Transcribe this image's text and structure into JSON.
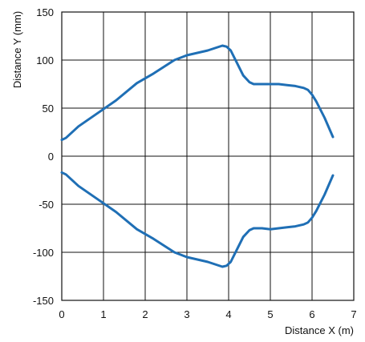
{
  "chart_data": {
    "type": "line",
    "title": "",
    "xlabel": "Distance X (m)",
    "ylabel": "Distance Y (mm)",
    "xlim": [
      0,
      7
    ],
    "ylim": [
      -150,
      150
    ],
    "xticks": [
      "0",
      "1",
      "2",
      "3",
      "4",
      "5",
      "6",
      "7"
    ],
    "yticks": [
      "150",
      "100",
      "50",
      "0",
      "-50",
      "-100",
      "-150"
    ],
    "xtick_values": [
      0,
      1,
      2,
      3,
      4,
      5,
      6,
      7
    ],
    "ytick_values": [
      150,
      100,
      50,
      0,
      -50,
      -100,
      -150
    ],
    "grid": true,
    "line_color": "#1f6fb5",
    "series": [
      {
        "x": [
          0.0,
          0.1,
          0.4,
          0.9,
          1.3,
          1.8,
          2.2,
          2.7,
          3.0,
          3.5,
          3.85,
          3.95,
          4.05,
          4.2,
          4.35,
          4.5,
          4.6,
          4.8,
          5.0,
          5.2,
          5.4,
          5.6,
          5.8,
          5.9,
          6.0,
          6.1,
          6.3,
          6.5
        ],
        "y": [
          17,
          19,
          31,
          46,
          58,
          76,
          86,
          100,
          105,
          110,
          115,
          114,
          110,
          97,
          84,
          77,
          75,
          75,
          75,
          75,
          74,
          73,
          71,
          69,
          64,
          57,
          40,
          20
        ]
      },
      {
        "x": [
          0.0,
          0.1,
          0.4,
          0.9,
          1.3,
          1.8,
          2.2,
          2.7,
          3.0,
          3.5,
          3.85,
          3.95,
          4.05,
          4.2,
          4.35,
          4.5,
          4.6,
          4.8,
          5.0,
          5.2,
          5.4,
          5.6,
          5.8,
          5.9,
          6.0,
          6.1,
          6.3,
          6.5
        ],
        "y": [
          -17,
          -19,
          -31,
          -46,
          -58,
          -76,
          -86,
          -100,
          -105,
          -110,
          -115,
          -114,
          -110,
          -97,
          -84,
          -77,
          -75,
          -75,
          -76,
          -75,
          -74,
          -73,
          -71,
          -69,
          -64,
          -57,
          -40,
          -20
        ]
      }
    ]
  }
}
